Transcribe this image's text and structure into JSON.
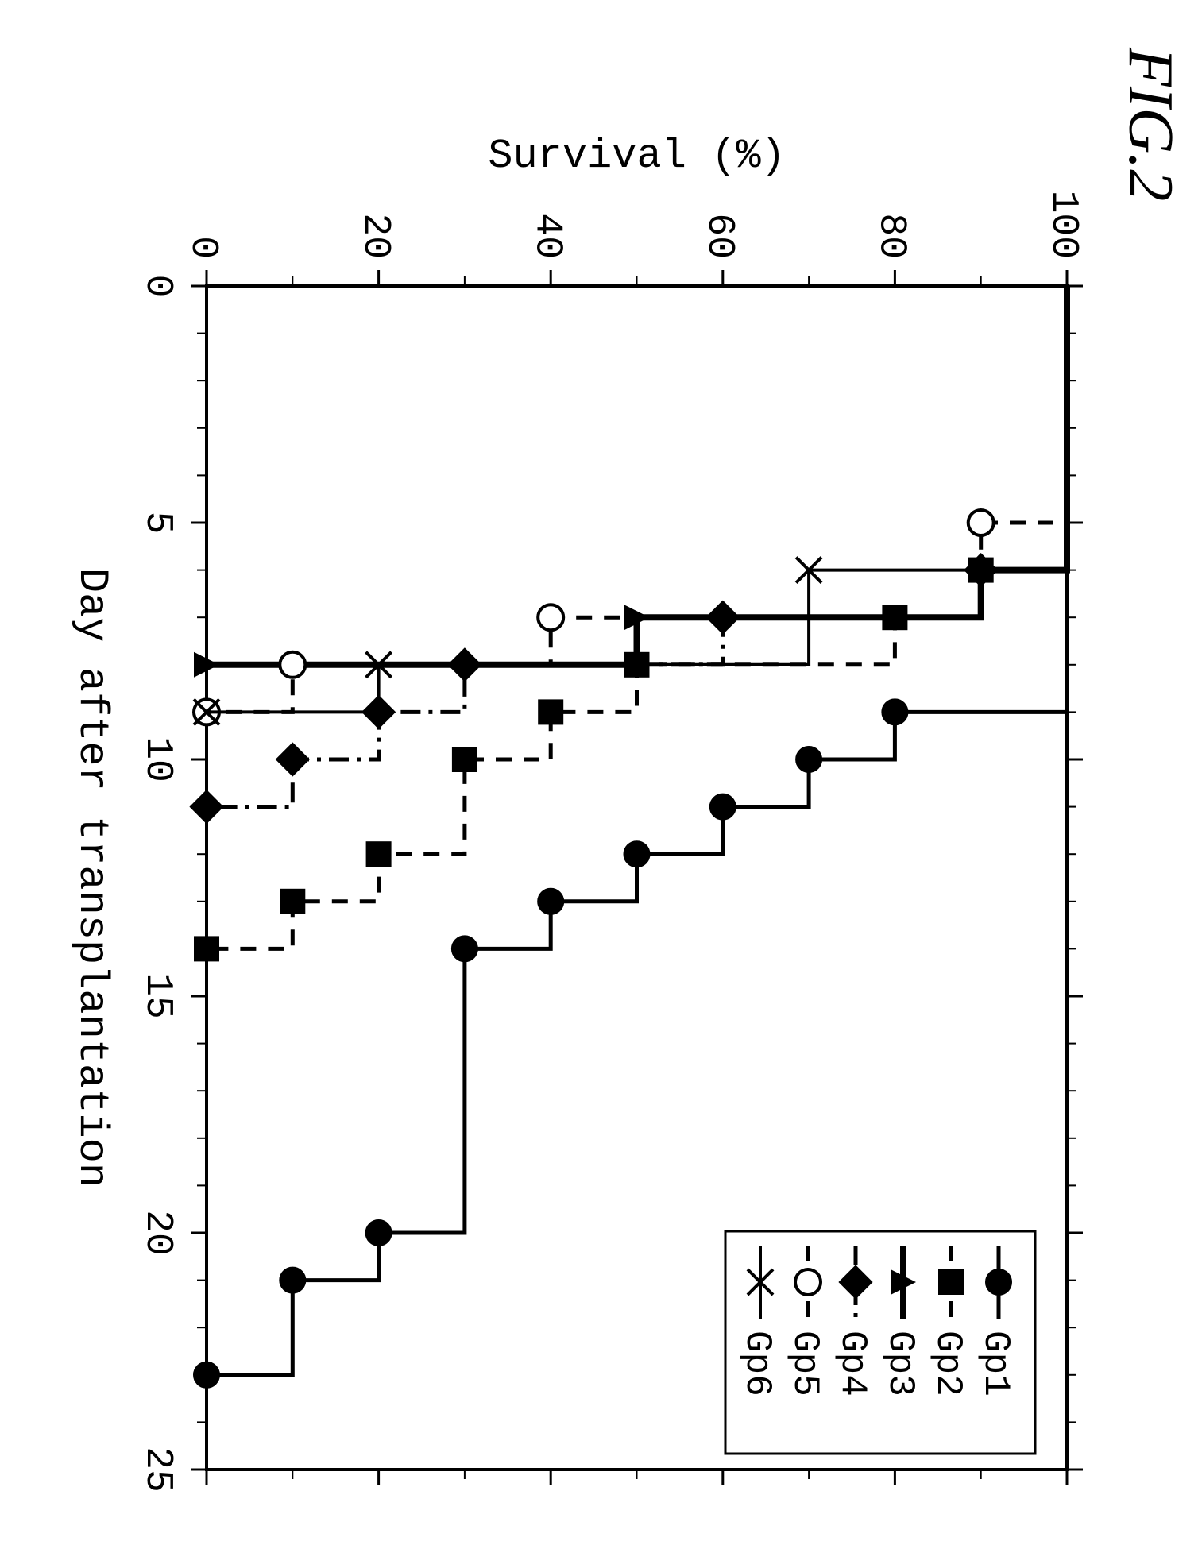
{
  "figure": {
    "title": "FIG.2",
    "title_fontsize": 80,
    "title_style": "italic",
    "rotation_deg": 90,
    "xlabel": "Day after transplantation",
    "ylabel": "Survival (%)",
    "label_fontsize": 52,
    "tick_fontsize": 48,
    "xlim": [
      0,
      25
    ],
    "ylim": [
      0,
      100
    ],
    "xticks": [
      0,
      5,
      10,
      15,
      20,
      25
    ],
    "yticks": [
      0,
      20,
      40,
      60,
      80,
      100
    ],
    "minor_xticks": [
      1,
      2,
      3,
      4,
      6,
      7,
      8,
      9,
      11,
      12,
      13,
      14,
      16,
      17,
      18,
      19,
      21,
      22,
      23,
      24
    ],
    "background_color": "#ffffff",
    "border_color": "#000000",
    "border_width": 4,
    "tick_color": "#000000",
    "tick_len_major": 20,
    "tick_len_minor": 12,
    "plot_font_family": "Courier New, monospace"
  },
  "legend": {
    "box_stroke": "#000000",
    "box_stroke_width": 3,
    "fontsize": 46,
    "items": [
      {
        "label": "Gp1"
      },
      {
        "label": "Gp2"
      },
      {
        "label": "Gp3"
      },
      {
        "label": "Gp4"
      },
      {
        "label": "Gp5"
      },
      {
        "label": "Gp6"
      }
    ]
  },
  "series": [
    {
      "name": "Gp1",
      "marker": "circle-filled",
      "marker_size": 16,
      "line_dash": "solid",
      "line_width": 5,
      "color": "#000000",
      "step_points": [
        [
          0,
          100
        ],
        [
          9,
          100
        ],
        [
          9,
          80
        ],
        [
          10,
          80
        ],
        [
          10,
          70
        ],
        [
          11,
          70
        ],
        [
          11,
          60
        ],
        [
          12,
          60
        ],
        [
          12,
          50
        ],
        [
          13,
          50
        ],
        [
          13,
          40
        ],
        [
          14,
          40
        ],
        [
          14,
          30
        ],
        [
          20,
          30
        ],
        [
          20,
          20
        ],
        [
          21,
          20
        ],
        [
          21,
          10
        ],
        [
          23,
          10
        ],
        [
          23,
          0
        ]
      ],
      "markers_at": [
        [
          9,
          80
        ],
        [
          10,
          70
        ],
        [
          11,
          60
        ],
        [
          12,
          50
        ],
        [
          13,
          40
        ],
        [
          14,
          30
        ],
        [
          20,
          20
        ],
        [
          21,
          10
        ],
        [
          23,
          0
        ]
      ]
    },
    {
      "name": "Gp2",
      "marker": "square-filled",
      "marker_size": 16,
      "line_dash": "dash",
      "line_width": 5,
      "color": "#000000",
      "step_points": [
        [
          0,
          100
        ],
        [
          6,
          100
        ],
        [
          6,
          90
        ],
        [
          7,
          90
        ],
        [
          7,
          80
        ],
        [
          8,
          80
        ],
        [
          8,
          50
        ],
        [
          9,
          50
        ],
        [
          9,
          40
        ],
        [
          10,
          40
        ],
        [
          10,
          30
        ],
        [
          12,
          30
        ],
        [
          12,
          20
        ],
        [
          13,
          20
        ],
        [
          13,
          10
        ],
        [
          14,
          10
        ],
        [
          14,
          0
        ]
      ],
      "markers_at": [
        [
          6,
          90
        ],
        [
          7,
          80
        ],
        [
          8,
          50
        ],
        [
          9,
          40
        ],
        [
          10,
          30
        ],
        [
          12,
          20
        ],
        [
          13,
          10
        ],
        [
          14,
          0
        ]
      ]
    },
    {
      "name": "Gp3",
      "marker": "triangle-filled",
      "marker_size": 16,
      "line_dash": "solid",
      "line_width": 8,
      "color": "#000000",
      "step_points": [
        [
          0,
          100
        ],
        [
          6,
          100
        ],
        [
          6,
          90
        ],
        [
          7,
          90
        ],
        [
          7,
          50
        ],
        [
          8,
          50
        ],
        [
          8,
          0
        ]
      ],
      "markers_at": [
        [
          6,
          90
        ],
        [
          7,
          50
        ],
        [
          8,
          0
        ]
      ]
    },
    {
      "name": "Gp4",
      "marker": "diamond-filled",
      "marker_size": 18,
      "line_dash": "dashdot",
      "line_width": 5,
      "color": "#000000",
      "step_points": [
        [
          0,
          100
        ],
        [
          6,
          100
        ],
        [
          6,
          90
        ],
        [
          7,
          90
        ],
        [
          7,
          60
        ],
        [
          8,
          60
        ],
        [
          8,
          30
        ],
        [
          9,
          30
        ],
        [
          9,
          20
        ],
        [
          10,
          20
        ],
        [
          10,
          10
        ],
        [
          11,
          10
        ],
        [
          11,
          0
        ]
      ],
      "markers_at": [
        [
          6,
          90
        ],
        [
          7,
          60
        ],
        [
          8,
          30
        ],
        [
          9,
          20
        ],
        [
          10,
          10
        ],
        [
          11,
          0
        ]
      ]
    },
    {
      "name": "Gp5",
      "marker": "circle-open",
      "marker_size": 16,
      "line_dash": "dash",
      "line_width": 5,
      "color": "#000000",
      "step_points": [
        [
          0,
          100
        ],
        [
          5,
          100
        ],
        [
          5,
          90
        ],
        [
          7,
          90
        ],
        [
          7,
          40
        ],
        [
          8,
          40
        ],
        [
          8,
          10
        ],
        [
          9,
          10
        ],
        [
          9,
          0
        ]
      ],
      "markers_at": [
        [
          5,
          90
        ],
        [
          7,
          40
        ],
        [
          8,
          10
        ],
        [
          9,
          0
        ]
      ]
    },
    {
      "name": "Gp6",
      "marker": "x",
      "marker_size": 16,
      "line_dash": "solid",
      "line_width": 4,
      "color": "#000000",
      "step_points": [
        [
          0,
          100
        ],
        [
          6,
          100
        ],
        [
          6,
          70
        ],
        [
          8,
          70
        ],
        [
          8,
          20
        ],
        [
          9,
          20
        ],
        [
          9,
          0
        ]
      ],
      "markers_at": [
        [
          6,
          70
        ],
        [
          8,
          20
        ],
        [
          9,
          0
        ]
      ]
    }
  ]
}
